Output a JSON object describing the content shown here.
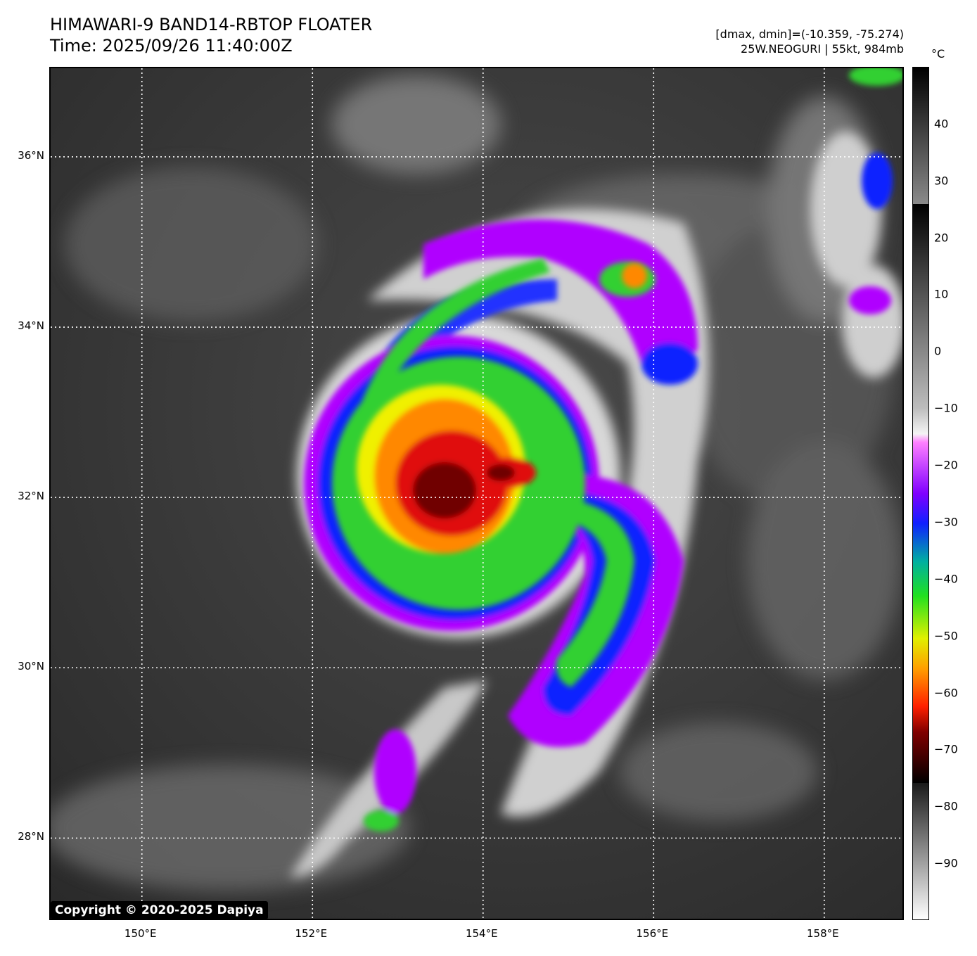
{
  "header": {
    "title_line1": "HIMAWARI-9 BAND14-RBTOP FLOATER",
    "title_line2": "Time: 2025/09/26 11:40:00Z",
    "range_text": "[dmax, dmin]=(-10.359, -75.274)",
    "storm_text": "25W.NEOGURI | 55kt, 984mb"
  },
  "map": {
    "lon_range": [
      148.93,
      158.95
    ],
    "lat_range": [
      27.02,
      37.04
    ],
    "lat_labels": [
      "36°N",
      "34°N",
      "32°N",
      "30°N",
      "28°N"
    ],
    "lat_values": [
      36,
      34,
      32,
      30,
      28
    ],
    "lon_labels": [
      "150°E",
      "152°E",
      "154°E",
      "156°E",
      "158°E"
    ],
    "lon_values": [
      150,
      152,
      154,
      156,
      158
    ],
    "grid": "dotted white",
    "storm_center": {
      "lon": 153.8,
      "lat": 31.95
    },
    "copyright": "Copyright © 2020-2025 Dapiya"
  },
  "colorbar": {
    "unit": "°C",
    "range": [
      -100,
      50
    ],
    "ticks": [
      {
        "label": "40",
        "value": 40
      },
      {
        "label": "30",
        "value": 30
      },
      {
        "label": "20",
        "value": 20
      },
      {
        "label": "10",
        "value": 10
      },
      {
        "label": "0",
        "value": 0
      },
      {
        "label": "−10",
        "value": -10
      },
      {
        "label": "−20",
        "value": -20
      },
      {
        "label": "−30",
        "value": -30
      },
      {
        "label": "−40",
        "value": -40
      },
      {
        "label": "−50",
        "value": -50
      },
      {
        "label": "−60",
        "value": -60
      },
      {
        "label": "−70",
        "value": -70
      },
      {
        "label": "−80",
        "value": -80
      },
      {
        "label": "−90",
        "value": -90
      }
    ]
  },
  "colors": {
    "background_gray": "#3a3a3a",
    "cloud_white": "#e8e8e8",
    "magenta": "#b000ff",
    "blue": "#1020ff",
    "green": "#30d030",
    "yellow": "#f0f000",
    "orange": "#ff8800",
    "red": "#e01010",
    "dark_red": "#700000"
  }
}
